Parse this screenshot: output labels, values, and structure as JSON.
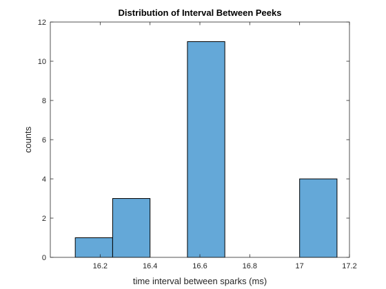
{
  "chart_data": {
    "type": "bar",
    "subtype": "histogram",
    "title": "Distribution of Interval Between Peeks",
    "xlabel": "time interval between sparks (ms)",
    "ylabel": "counts",
    "xlim": [
      16.0,
      17.2
    ],
    "ylim": [
      0,
      12
    ],
    "xticks": [
      16.2,
      16.4,
      16.6,
      16.8,
      17,
      17.2
    ],
    "yticks": [
      0,
      2,
      4,
      6,
      8,
      10,
      12
    ],
    "grid": false,
    "legend": "none",
    "bar_color": "#64a8d8",
    "edge_color": "#000000",
    "bins": [
      {
        "x0": 16.1,
        "x1": 16.25,
        "count": 1
      },
      {
        "x0": 16.25,
        "x1": 16.4,
        "count": 3
      },
      {
        "x0": 16.4,
        "x1": 16.55,
        "count": 0
      },
      {
        "x0": 16.55,
        "x1": 16.7,
        "count": 11
      },
      {
        "x0": 16.7,
        "x1": 16.85,
        "count": 0
      },
      {
        "x0": 16.85,
        "x1": 17.0,
        "count": 0
      },
      {
        "x0": 17.0,
        "x1": 17.15,
        "count": 4
      }
    ]
  }
}
